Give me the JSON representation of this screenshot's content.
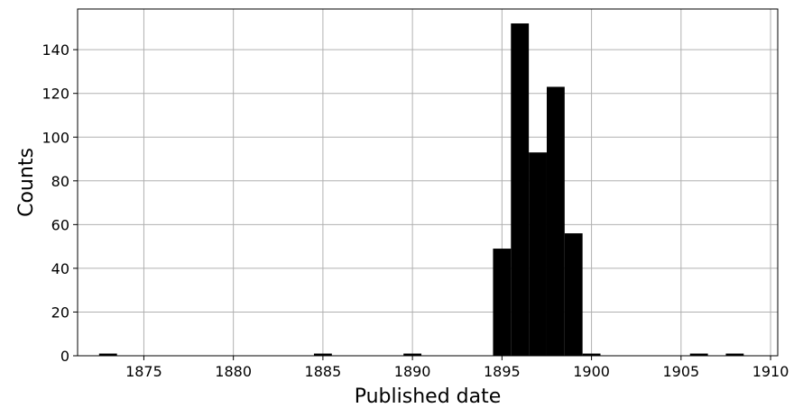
{
  "chart_data": {
    "type": "bar",
    "xlabel": "Published date",
    "ylabel": "Counts",
    "xlim": [
      1871.3,
      1910.4
    ],
    "ylim": [
      0,
      158.6
    ],
    "grid": true,
    "bar_color": "#000000",
    "grid_color": "#b0b0b0",
    "xticks": [
      1875,
      1880,
      1885,
      1890,
      1895,
      1900,
      1905,
      1910
    ],
    "yticks": [
      0,
      20,
      40,
      60,
      80,
      100,
      120,
      140
    ],
    "bins": [
      {
        "start": 1872.5,
        "end": 1873.5,
        "count": 1
      },
      {
        "start": 1884.5,
        "end": 1885.5,
        "count": 1
      },
      {
        "start": 1889.5,
        "end": 1890.5,
        "count": 1
      },
      {
        "start": 1894.5,
        "end": 1895.5,
        "count": 49
      },
      {
        "start": 1895.5,
        "end": 1896.5,
        "count": 152
      },
      {
        "start": 1896.5,
        "end": 1897.5,
        "count": 93
      },
      {
        "start": 1897.5,
        "end": 1898.5,
        "count": 123
      },
      {
        "start": 1898.5,
        "end": 1899.5,
        "count": 56
      },
      {
        "start": 1899.5,
        "end": 1900.5,
        "count": 1
      },
      {
        "start": 1905.5,
        "end": 1906.5,
        "count": 1
      },
      {
        "start": 1907.5,
        "end": 1908.5,
        "count": 1
      }
    ]
  }
}
